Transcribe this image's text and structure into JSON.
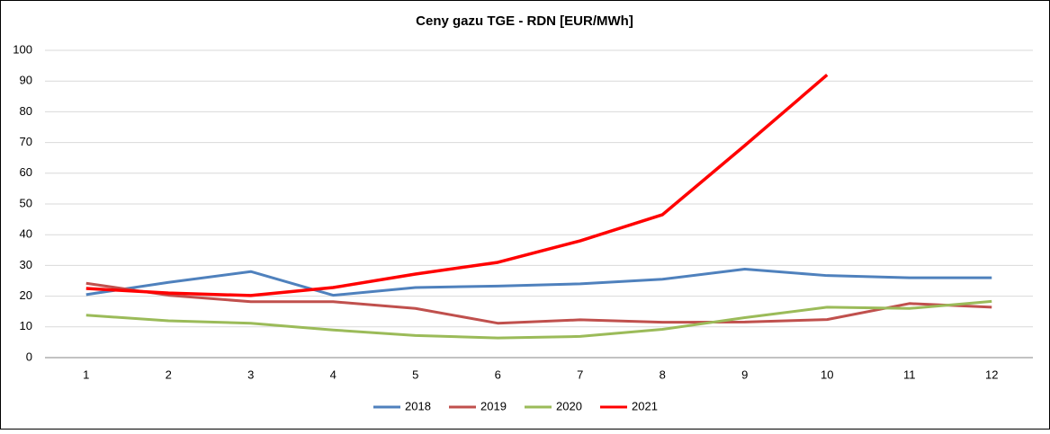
{
  "chart_data": {
    "type": "line",
    "title": "Ceny gazu TGE - RDN [EUR/MWh]",
    "categories": [
      "1",
      "2",
      "3",
      "4",
      "5",
      "6",
      "7",
      "8",
      "9",
      "10",
      "11",
      "12"
    ],
    "series": [
      {
        "name": "2018",
        "color": "#4f81bd",
        "values": [
          20.5,
          24.5,
          28,
          20.3,
          22.8,
          23.3,
          24,
          25.5,
          28.8,
          26.7,
          26,
          26
        ]
      },
      {
        "name": "2019",
        "color": "#c0504d",
        "values": [
          24.2,
          20.3,
          18.2,
          18.2,
          16,
          11.2,
          12.3,
          11.5,
          11.6,
          12.4,
          17.6,
          16.4
        ]
      },
      {
        "name": "2020",
        "color": "#9bbb59",
        "values": [
          13.8,
          12,
          11.2,
          9,
          7.2,
          6.4,
          6.9,
          9.2,
          13,
          16.4,
          16,
          18.3
        ]
      },
      {
        "name": "2021",
        "color": "#ff0000",
        "values": [
          22.5,
          21,
          20.2,
          22.8,
          27.2,
          31,
          38,
          46.5,
          69,
          92,
          null,
          null
        ]
      }
    ],
    "ylim": [
      0,
      100
    ],
    "yticks": [
      0,
      10,
      20,
      30,
      40,
      50,
      60,
      70,
      80,
      90,
      100
    ],
    "grid": true,
    "legend": "bottom"
  }
}
